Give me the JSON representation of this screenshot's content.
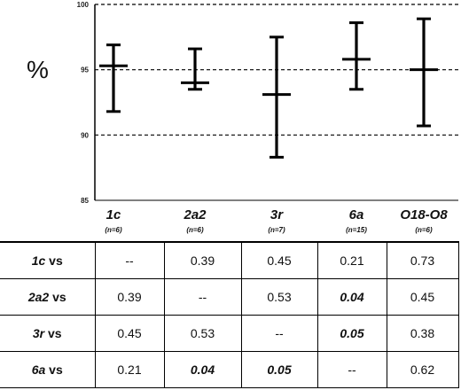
{
  "chart_data": {
    "type": "errorbar",
    "ylabel": "%",
    "ylim": [
      85,
      100
    ],
    "yticks": [
      85,
      90,
      95,
      100
    ],
    "grid_dashed_at": [
      90,
      95,
      100
    ],
    "categories": [
      {
        "name": "1c",
        "n": "(n=6)",
        "mean": 95.3,
        "low": 91.8,
        "high": 96.9
      },
      {
        "name": "2a2",
        "n": "(n=6)",
        "mean": 94.0,
        "low": 93.5,
        "high": 96.6
      },
      {
        "name": "3r",
        "n": "(n=7)",
        "mean": 93.1,
        "low": 88.3,
        "high": 97.5
      },
      {
        "name": "6a",
        "n": "(n=15)",
        "mean": 95.8,
        "low": 93.5,
        "high": 98.6
      },
      {
        "name": "O18-O8",
        "n": "(n=6)",
        "mean": 95.0,
        "low": 90.7,
        "high": 98.9
      }
    ]
  },
  "table": {
    "rows": [
      {
        "label": "1c",
        "vs": " vs",
        "cells": [
          {
            "v": "--",
            "sig": false
          },
          {
            "v": "0.39",
            "sig": false
          },
          {
            "v": "0.45",
            "sig": false
          },
          {
            "v": "0.21",
            "sig": false
          },
          {
            "v": "0.73",
            "sig": false
          }
        ]
      },
      {
        "label": "2a2",
        "vs": " vs",
        "cells": [
          {
            "v": "0.39",
            "sig": false
          },
          {
            "v": "--",
            "sig": false
          },
          {
            "v": "0.53",
            "sig": false
          },
          {
            "v": "0.04",
            "sig": true
          },
          {
            "v": "0.45",
            "sig": false
          }
        ]
      },
      {
        "label": "3r",
        "vs": " vs",
        "cells": [
          {
            "v": "0.45",
            "sig": false
          },
          {
            "v": "0.53",
            "sig": false
          },
          {
            "v": "--",
            "sig": false
          },
          {
            "v": "0.05",
            "sig": true
          },
          {
            "v": "0.38",
            "sig": false
          }
        ]
      },
      {
        "label": "6a",
        "vs": " vs",
        "cells": [
          {
            "v": "0.21",
            "sig": false
          },
          {
            "v": "0.04",
            "sig": true
          },
          {
            "v": "0.05",
            "sig": true
          },
          {
            "v": "--",
            "sig": false
          },
          {
            "v": "0.62",
            "sig": false
          }
        ]
      }
    ]
  }
}
